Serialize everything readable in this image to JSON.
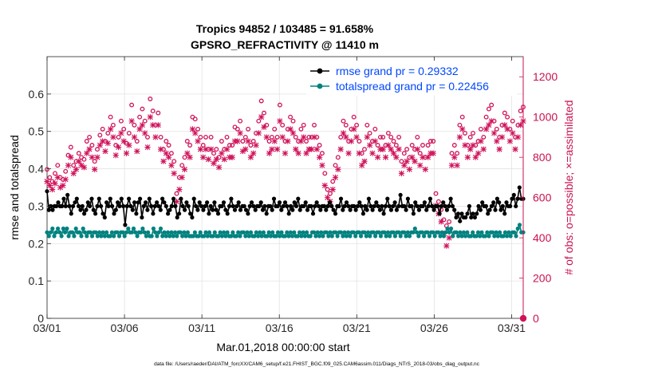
{
  "chart_data": {
    "type": "line",
    "title": "Tropics 94852 / 103485 = 91.658%",
    "subtitle": "GPSRO_REFRACTIVITY @ 11410 m",
    "xlabel": "Mar.01,2018 00:00:00 start",
    "ylabel_left": "rmse and totalspread",
    "ylabel_right": "# of obs: o=possible; ×=assimilated",
    "footer": "data file: /Users/raeder/DAI/ATM_forcXX/CAM6_setup/f.e21.FHIST_BGC.f09_025.CAM6assim.011/Diags_NTrS_2018-03/obs_diag_output.nc",
    "x_ticks": [
      "03/01",
      "03/06",
      "03/11",
      "03/16",
      "03/21",
      "03/26",
      "03/31"
    ],
    "x_tick_days": [
      1,
      6,
      11,
      16,
      21,
      26,
      31
    ],
    "xlim_days": [
      1,
      31.75
    ],
    "y_left_ticks": [
      "0",
      "0.1",
      "0.2",
      "0.3",
      "0.4",
      "0.5",
      "0.6"
    ],
    "ylim_left": [
      0,
      0.7
    ],
    "y_right_ticks": [
      "0",
      "200",
      "400",
      "600",
      "800",
      "1000",
      "1200"
    ],
    "ylim_right": [
      0,
      1300
    ],
    "grid": true,
    "legend_position": "top-right",
    "colors": {
      "rmse": "#000000",
      "spread": "#00827f",
      "obs": "#d0125a",
      "legend_text": "#0047ff",
      "right_axis": "#c8134f"
    },
    "series": [
      {
        "name": "rmse grand pr = 0.29332",
        "axis": "left",
        "values": [
          0.34,
          0.29,
          0.3,
          0.29,
          0.3,
          0.3,
          0.31,
          0.3,
          0.3,
          0.32,
          0.3,
          0.33,
          0.3,
          0.28,
          0.3,
          0.31,
          0.32,
          0.3,
          0.29,
          0.3,
          0.28,
          0.29,
          0.31,
          0.3,
          0.32,
          0.29,
          0.28,
          0.3,
          0.32,
          0.3,
          0.28,
          0.27,
          0.31,
          0.3,
          0.32,
          0.3,
          0.28,
          0.29,
          0.31,
          0.3,
          0.32,
          0.3,
          0.25,
          0.3,
          0.32,
          0.3,
          0.29,
          0.31,
          0.28,
          0.31,
          0.32,
          0.27,
          0.3,
          0.31,
          0.29,
          0.32,
          0.3,
          0.28,
          0.3,
          0.31,
          0.3,
          0.29,
          0.32,
          0.31,
          0.3,
          0.28,
          0.29,
          0.3,
          0.32,
          0.3,
          0.27,
          0.28,
          0.32,
          0.3,
          0.29,
          0.31,
          0.3,
          0.28,
          0.27,
          0.32,
          0.3,
          0.29,
          0.31,
          0.3,
          0.29,
          0.3,
          0.31,
          0.28,
          0.3,
          0.29,
          0.31,
          0.29,
          0.28,
          0.3,
          0.3,
          0.31,
          0.29,
          0.28,
          0.3,
          0.32,
          0.3,
          0.29,
          0.3,
          0.31,
          0.29,
          0.3,
          0.3,
          0.29,
          0.28,
          0.3,
          0.31,
          0.3,
          0.29,
          0.3,
          0.3,
          0.31,
          0.29,
          0.3,
          0.28,
          0.3,
          0.3,
          0.29,
          0.32,
          0.3,
          0.3,
          0.31,
          0.29,
          0.3,
          0.31,
          0.3,
          0.28,
          0.3,
          0.29,
          0.31,
          0.3,
          0.32,
          0.29,
          0.3,
          0.3,
          0.31,
          0.29,
          0.3,
          0.3,
          0.28,
          0.3,
          0.31,
          0.3,
          0.29,
          0.3,
          0.3,
          0.29,
          0.3,
          0.31,
          0.3,
          0.29,
          0.28,
          0.3,
          0.3,
          0.32,
          0.29,
          0.3,
          0.31,
          0.3,
          0.29,
          0.3,
          0.3,
          0.29,
          0.3,
          0.31,
          0.3,
          0.28,
          0.3,
          0.29,
          0.32,
          0.3,
          0.29,
          0.3,
          0.31,
          0.3,
          0.29,
          0.3,
          0.28,
          0.3,
          0.32,
          0.3,
          0.29,
          0.3,
          0.31,
          0.29,
          0.3,
          0.33,
          0.3,
          0.3,
          0.29,
          0.32,
          0.3,
          0.3,
          0.28,
          0.31,
          0.3,
          0.29,
          0.3,
          0.3,
          0.31,
          0.29,
          0.3,
          0.32,
          0.3,
          0.29,
          0.3,
          0.3,
          0.28,
          0.3,
          0.31,
          0.3,
          0.29,
          0.3,
          0.32,
          0.3,
          0.29,
          0.27,
          0.28,
          0.26,
          0.28,
          0.27,
          0.27,
          0.28,
          0.3,
          0.27,
          0.28,
          0.27,
          0.28,
          0.3,
          0.29,
          0.31,
          0.3,
          0.3,
          0.28,
          0.29,
          0.3,
          0.31,
          0.29,
          0.32,
          0.31,
          0.29,
          0.3,
          0.28,
          0.31,
          0.3,
          0.3,
          0.32,
          0.33,
          0.3,
          0.32,
          0.35,
          0.32,
          0.32
        ]
      },
      {
        "name": "totalspread grand pr = 0.22456",
        "axis": "left",
        "values": [
          0.23,
          0.22,
          0.23,
          0.24,
          0.22,
          0.23,
          0.24,
          0.23,
          0.22,
          0.24,
          0.23,
          0.24,
          0.22,
          0.23,
          0.23,
          0.22,
          0.24,
          0.23,
          0.23,
          0.22,
          0.24,
          0.23,
          0.22,
          0.23,
          0.23,
          0.22,
          0.23,
          0.23,
          0.22,
          0.23,
          0.22,
          0.23,
          0.22,
          0.23,
          0.22,
          0.22,
          0.23,
          0.22,
          0.23,
          0.23,
          0.22,
          0.23,
          0.23,
          0.22,
          0.23,
          0.24,
          0.23,
          0.23,
          0.24,
          0.23,
          0.22,
          0.23,
          0.23,
          0.24,
          0.23,
          0.22,
          0.23,
          0.22,
          0.22,
          0.24,
          0.23,
          0.22,
          0.23,
          0.24,
          0.22,
          0.23,
          0.22,
          0.23,
          0.22,
          0.23,
          0.22,
          0.23,
          0.22,
          0.23,
          0.23,
          0.22,
          0.23,
          0.22,
          0.23,
          0.22,
          0.22,
          0.22,
          0.23,
          0.22,
          0.22,
          0.23,
          0.22,
          0.22,
          0.23,
          0.22,
          0.23,
          0.22,
          0.22,
          0.23,
          0.22,
          0.22,
          0.23,
          0.22,
          0.23,
          0.22,
          0.23,
          0.22,
          0.22,
          0.23,
          0.22,
          0.22,
          0.23,
          0.22,
          0.23,
          0.23,
          0.22,
          0.23,
          0.22,
          0.23,
          0.22,
          0.22,
          0.23,
          0.22,
          0.23,
          0.22,
          0.23,
          0.22,
          0.22,
          0.23,
          0.22,
          0.23,
          0.22,
          0.22,
          0.23,
          0.22,
          0.23,
          0.22,
          0.22,
          0.23,
          0.22,
          0.23,
          0.22,
          0.23,
          0.22,
          0.22,
          0.23,
          0.22,
          0.23,
          0.22,
          0.23,
          0.22,
          0.22,
          0.23,
          0.23,
          0.22,
          0.23,
          0.22,
          0.23,
          0.22,
          0.23,
          0.23,
          0.22,
          0.23,
          0.22,
          0.23,
          0.23,
          0.22,
          0.23,
          0.23,
          0.22,
          0.23,
          0.22,
          0.23,
          0.22,
          0.23,
          0.23,
          0.22,
          0.23,
          0.23,
          0.22,
          0.23,
          0.23,
          0.22,
          0.23,
          0.22,
          0.23,
          0.23,
          0.22,
          0.23,
          0.23,
          0.22,
          0.23,
          0.23,
          0.22,
          0.23,
          0.22,
          0.23,
          0.23,
          0.22,
          0.23,
          0.23,
          0.22,
          0.23,
          0.23,
          0.22,
          0.23,
          0.22,
          0.23,
          0.23,
          0.24,
          0.23,
          0.22,
          0.23,
          0.23,
          0.22,
          0.23,
          0.23,
          0.22,
          0.23,
          0.23,
          0.22,
          0.23,
          0.23,
          0.22,
          0.23,
          0.22,
          0.23,
          0.24,
          0.23,
          0.24,
          0.22,
          0.23,
          0.23,
          0.22,
          0.23,
          0.22,
          0.23,
          0.22,
          0.23,
          0.22,
          0.22,
          0.23,
          0.22,
          0.22,
          0.23,
          0.22,
          0.23,
          0.22,
          0.22,
          0.23,
          0.22,
          0.23,
          0.23,
          0.22,
          0.23,
          0.22,
          0.23,
          0.22,
          0.22,
          0.23,
          0.22,
          0.23,
          0.22,
          0.23,
          0.23,
          0.22,
          0.24,
          0.25,
          0.23,
          0.23
        ]
      },
      {
        "name": "possible obs",
        "axis": "right",
        "marker": "circle",
        "values": [
          740,
          700,
          680,
          720,
          760,
          700,
          690,
          730,
          810,
          850,
          760,
          780,
          820,
          800,
          790,
          880,
          900,
          860,
          780,
          840,
          910,
          940,
          880,
          920,
          1000,
          960,
          860,
          900,
          980,
          940,
          870,
          920,
          1060,
          960,
          880,
          1000,
          1040,
          980,
          900,
          1090,
          1030,
          960,
          1020,
          900,
          840,
          880,
          860,
          820,
          780,
          620,
          700,
          760,
          800,
          880,
          860,
          1000,
          990,
          940,
          900,
          860,
          900,
          840,
          900,
          820,
          840,
          800,
          880,
          840,
          900,
          860,
          860,
          950,
          940,
          980,
          880,
          900,
          940,
          860,
          880,
          920,
          980,
          1080,
          1020,
          960,
          880,
          900,
          940,
          900,
          1060,
          960,
          880,
          940,
          1000,
          980,
          900,
          880,
          940,
          960,
          880,
          900,
          900,
          960,
          900,
          860,
          820,
          720,
          640,
          620,
          680,
          760,
          800,
          900,
          980,
          960,
          880,
          940,
          1000,
          960,
          880,
          820,
          840,
          960,
          920,
          880,
          940,
          860,
          900,
          900,
          860,
          920,
          900,
          880,
          860,
          900,
          780,
          820,
          840,
          800,
          860,
          840,
          900,
          820,
          860,
          800,
          860,
          880,
          880,
          620,
          580,
          540,
          490,
          460,
          480,
          820,
          860,
          820,
          960,
          1000,
          920,
          860,
          900,
          920,
          860,
          880,
          940,
          900,
          1000,
          1040,
          1060,
          980,
          940,
          900,
          960,
          1020,
          1000,
          940,
          980,
          900,
          960,
          1030,
          1050
        ]
      },
      {
        "name": "assimilated obs",
        "axis": "right",
        "marker": "x",
        "values": [
          680,
          660,
          640,
          670,
          700,
          650,
          660,
          690,
          760,
          800,
          720,
          740,
          780,
          760,
          750,
          820,
          840,
          800,
          740,
          800,
          860,
          880,
          830,
          870,
          940,
          900,
          810,
          850,
          920,
          880,
          820,
          860,
          980,
          900,
          830,
          940,
          960,
          920,
          850,
          1000,
          960,
          900,
          960,
          840,
          780,
          820,
          800,
          760,
          720,
          580,
          640,
          700,
          740,
          820,
          800,
          940,
          920,
          880,
          840,
          800,
          840,
          790,
          840,
          770,
          790,
          750,
          820,
          790,
          840,
          800,
          800,
          880,
          880,
          920,
          830,
          840,
          880,
          800,
          820,
          860,
          920,
          1000,
          950,
          900,
          820,
          840,
          880,
          840,
          980,
          900,
          820,
          880,
          940,
          920,
          840,
          820,
          880,
          900,
          820,
          840,
          840,
          900,
          840,
          800,
          760,
          660,
          600,
          580,
          640,
          700,
          740,
          840,
          920,
          900,
          820,
          880,
          940,
          900,
          820,
          760,
          780,
          900,
          860,
          820,
          880,
          800,
          840,
          840,
          800,
          860,
          840,
          820,
          800,
          840,
          720,
          760,
          780,
          740,
          800,
          780,
          840,
          760,
          800,
          740,
          800,
          820,
          820,
          560,
          520,
          480,
          420,
          360,
          400,
          760,
          800,
          760,
          900,
          940,
          860,
          800,
          840,
          860,
          800,
          820,
          880,
          840,
          940,
          960,
          980,
          920,
          880,
          840,
          900,
          960,
          940,
          880,
          920,
          840,
          900,
          960,
          980
        ]
      }
    ]
  }
}
